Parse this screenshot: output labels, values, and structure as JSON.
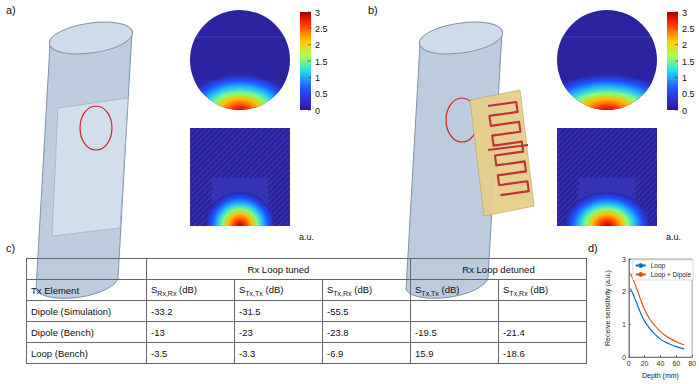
{
  "panel_labels": {
    "a": "a)",
    "b": "b)",
    "c": "c)",
    "d": "d)"
  },
  "field_maps": {
    "a": {
      "colorbar": {
        "range": [
          0,
          3
        ],
        "ticks": [
          0,
          0.5,
          1,
          1.5,
          2,
          2.5,
          3
        ],
        "label": "a.u."
      }
    },
    "b": {
      "colorbar": {
        "range": [
          0,
          3
        ],
        "ticks": [
          0,
          0.5,
          1,
          1.5,
          2,
          2.5,
          3
        ],
        "label": "a.u."
      }
    }
  },
  "table": {
    "column_groups": [
      {
        "title": "Rx Loop tuned",
        "span": 3
      },
      {
        "title": "Rx Loop detuned",
        "span": 2
      }
    ],
    "row_header": "Tx Element",
    "columns": [
      {
        "symbol": "S",
        "subscript": "Rx,Rx",
        "unit": "(dB)"
      },
      {
        "symbol": "S",
        "subscript": "Tx,Tx",
        "unit": "(dB)"
      },
      {
        "symbol": "S",
        "subscript": "Tx,Rx",
        "unit": "(dB)"
      },
      {
        "symbol": "S",
        "subscript": "Tx,Tx",
        "unit": "(dB)"
      },
      {
        "symbol": "S",
        "subscript": "Tx,Rx",
        "unit": "(dB)"
      }
    ],
    "rows": [
      {
        "element": "Dipole (Simulation)",
        "values": [
          -33.2,
          -31.5,
          -55.5,
          null,
          null
        ]
      },
      {
        "element": "Dipole (Bench)",
        "values": [
          -13,
          -23,
          -23.8,
          -19.5,
          -21.4
        ]
      },
      {
        "element": "Loop (Bench)",
        "values": [
          -3.5,
          -3.3,
          -6.9,
          15.9,
          -18.6
        ]
      }
    ]
  },
  "chart_data": {
    "type": "line",
    "xlabel": "Depth (mm)",
    "ylabel": "Receive sensitivity (a.u.)",
    "x": [
      2,
      5,
      10,
      15,
      20,
      25,
      30,
      40,
      50,
      60,
      70
    ],
    "series": [
      {
        "name": "Loop",
        "color": "#0072bd",
        "values": [
          2.1,
          1.95,
          1.65,
          1.35,
          1.1,
          0.92,
          0.78,
          0.55,
          0.42,
          0.32,
          0.25
        ]
      },
      {
        "name": "Loop + Dipole",
        "color": "#d95319",
        "values": [
          2.55,
          2.4,
          2.1,
          1.75,
          1.45,
          1.22,
          1.05,
          0.78,
          0.6,
          0.47,
          0.37
        ]
      }
    ],
    "xlim": [
      0,
      80
    ],
    "xticks": [
      0,
      20,
      40,
      60,
      80
    ],
    "ylim": [
      0,
      3
    ],
    "yticks": [
      0,
      1,
      2,
      3
    ],
    "legend": "upper right",
    "grid": false
  }
}
